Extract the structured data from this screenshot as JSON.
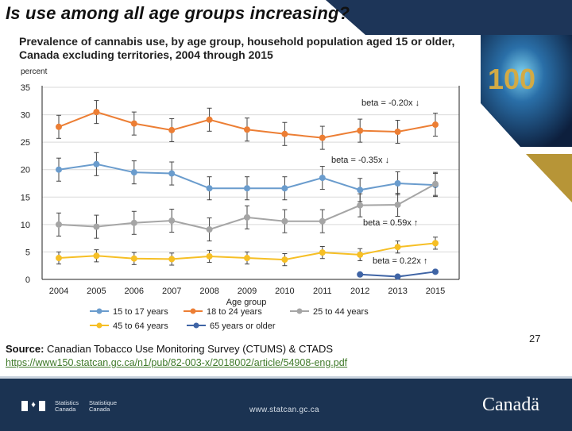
{
  "slide": {
    "title": "Is use among all age groups increasing?",
    "page_number": "27",
    "source_label": "Source:",
    "source_text": " Canadian Tobacco Use Monitoring Survey (CTUMS) & CTADS",
    "source_link": "https://www150.statcan.gc.ca/n1/pub/82-003-x/2018002/article/54908-eng.pdf"
  },
  "footer": {
    "statcan_en_line1": "Statistics",
    "statcan_en_line2": "Canada",
    "statcan_fr_line1": "Statistique",
    "statcan_fr_line2": "Canada",
    "url": "www.statcan.gc.ca",
    "wordmark": "Canadä",
    "background": "#1b3352"
  },
  "chart_data": {
    "type": "line",
    "title": "Prevalence of cannabis use, by age group, household population aged 15 or older, Canada excluding territories, 2004 through 2015",
    "xlabel": "Age group",
    "ylabel": "percent",
    "ylim": [
      0,
      35
    ],
    "yticks": [
      0,
      5,
      10,
      15,
      20,
      25,
      30,
      35
    ],
    "grid": true,
    "legend_position": "bottom",
    "categories": [
      "2004",
      "2005",
      "2006",
      "2007",
      "2008",
      "2009",
      "2010",
      "2011",
      "2012",
      "2013",
      "2015"
    ],
    "series": [
      {
        "name": "15 to 17 years",
        "color": "#6a9ccd",
        "values": [
          20.0,
          21.0,
          19.5,
          19.3,
          16.6,
          16.6,
          16.6,
          18.5,
          16.3,
          17.5,
          17.2
        ]
      },
      {
        "name": "18 to 24 years",
        "color": "#ec7e34",
        "values": [
          27.8,
          30.5,
          28.4,
          27.2,
          29.1,
          27.3,
          26.5,
          25.8,
          27.1,
          26.9,
          28.2
        ]
      },
      {
        "name": "25 to 44 years",
        "color": "#a5a5a5",
        "values": [
          10.0,
          9.6,
          10.3,
          10.7,
          9.1,
          11.3,
          10.6,
          10.6,
          13.5,
          13.6,
          17.4
        ]
      },
      {
        "name": "45 to 64 years",
        "color": "#f6bf25",
        "values": [
          3.9,
          4.3,
          3.8,
          3.7,
          4.2,
          3.9,
          3.6,
          4.9,
          4.5,
          5.9,
          6.6
        ]
      },
      {
        "name": "65 years or older",
        "color": "#3f64a5",
        "values": [
          null,
          null,
          null,
          null,
          null,
          null,
          null,
          null,
          0.9,
          0.5,
          1.4
        ]
      }
    ],
    "annotations": [
      {
        "text": "beta = -0.20x ↓",
        "series": "18 to 24 years"
      },
      {
        "text": "beta = -0.35x ↓",
        "series": "15 to 17 years"
      },
      {
        "text": "beta = 0.59x ↑",
        "series": "25 to 44 years"
      },
      {
        "text": "beta = 0.22x ↑",
        "series": "45 to 64 years"
      }
    ]
  }
}
